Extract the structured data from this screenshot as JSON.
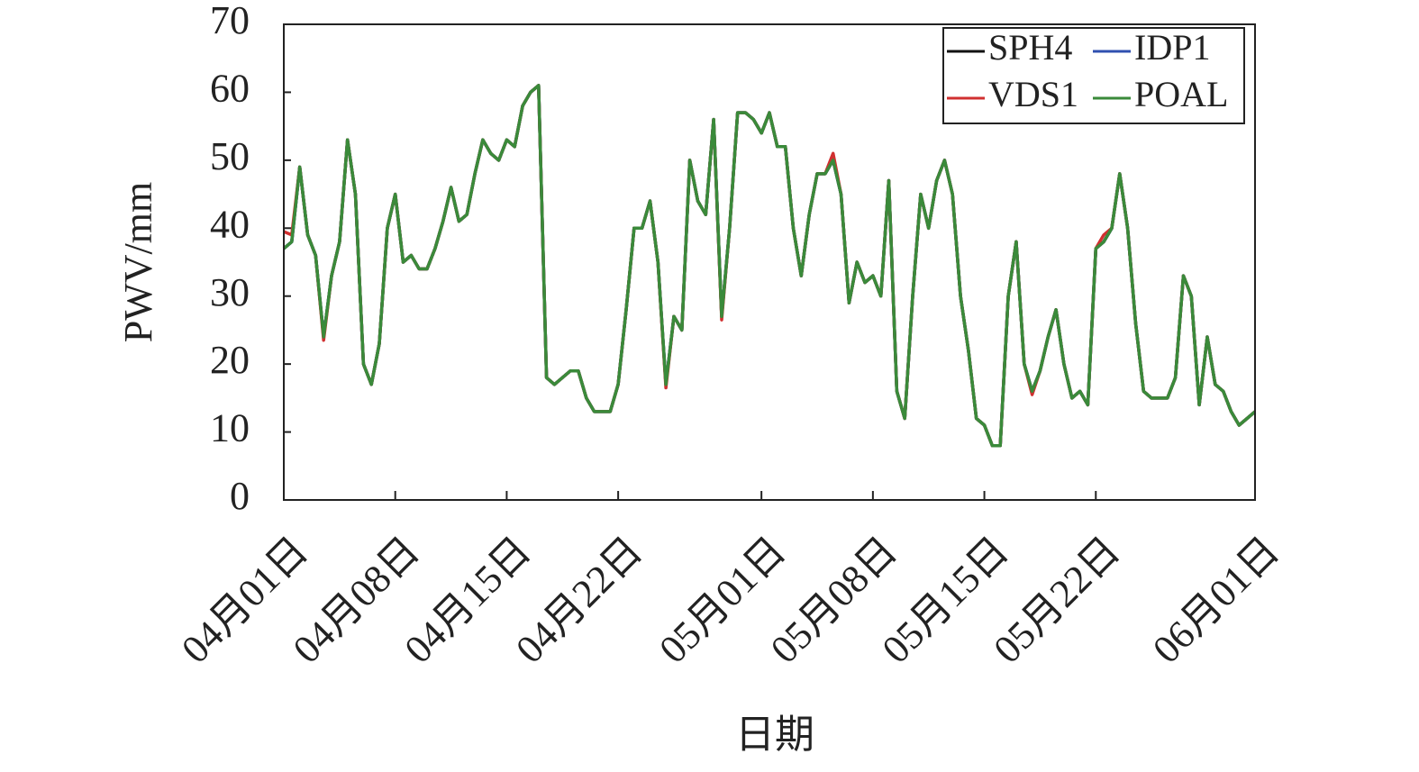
{
  "chart_data": {
    "type": "line",
    "xlabel": "日期",
    "ylabel": "PWV/mm",
    "x": [
      0,
      0.5,
      1,
      1.5,
      2,
      2.5,
      3,
      3.5,
      4,
      4.5,
      5,
      5.5,
      6,
      6.5,
      7,
      7.5,
      8,
      8.5,
      9,
      9.5,
      10,
      10.5,
      11,
      11.5,
      12,
      12.5,
      13,
      13.5,
      14,
      14.5,
      15,
      15.5,
      16,
      16.5,
      17,
      17.5,
      18,
      18.5,
      19,
      19.5,
      20,
      20.5,
      21,
      21.5,
      22,
      22.5,
      23,
      23.5,
      24,
      24.5,
      25,
      25.5,
      26,
      26.5,
      27,
      27.5,
      28,
      28.5,
      29,
      29.5,
      30,
      30.5,
      31,
      31.5,
      32,
      32.5,
      33,
      33.5,
      34,
      34.5,
      35,
      35.5,
      36,
      36.5,
      37,
      37.5,
      38,
      38.5,
      39,
      39.5,
      40,
      40.5,
      41,
      41.5,
      42,
      42.5,
      43,
      43.5,
      44,
      44.5,
      45,
      45.5,
      46,
      46.5,
      47,
      47.5,
      48,
      48.5,
      49,
      49.5,
      50,
      50.5,
      51,
      51.5,
      52,
      52.5,
      53,
      53.5,
      54,
      54.5,
      55,
      55.5,
      56,
      56.5,
      57,
      57.5,
      58,
      58.5,
      59,
      59.5,
      60,
      60.5,
      61
    ],
    "series": [
      {
        "name": "SPH4",
        "color": "#111111",
        "values": [
          37,
          38,
          49,
          39,
          36,
          24,
          33,
          38,
          53,
          45,
          20,
          17,
          23,
          40,
          45,
          35,
          36,
          34,
          34,
          37,
          41,
          46,
          41,
          42,
          48,
          53,
          51,
          50,
          53,
          52,
          58,
          60,
          61,
          18,
          17,
          18,
          19,
          19,
          15,
          13,
          13,
          13,
          17,
          28,
          40,
          40,
          44,
          35,
          17,
          27,
          25,
          50,
          44,
          42,
          56,
          27,
          40,
          57,
          57,
          56,
          54,
          57,
          52,
          52,
          40,
          33,
          42,
          48,
          48,
          50,
          45,
          29,
          35,
          32,
          33,
          30,
          47,
          16,
          12,
          30,
          45,
          40,
          47,
          50,
          45,
          30,
          22,
          12,
          11,
          8,
          8,
          30,
          38,
          20,
          16,
          19,
          24,
          28,
          20,
          15,
          16,
          14,
          37,
          38,
          40,
          48,
          40,
          26,
          16,
          15,
          15,
          15,
          18,
          33,
          30,
          14,
          24,
          17,
          16,
          13,
          11,
          12,
          13
        ]
      },
      {
        "name": "IDP1",
        "color": "#3050b0",
        "values": [
          37,
          38,
          49,
          39,
          36,
          24,
          33,
          38,
          53,
          45,
          20,
          17,
          23,
          40,
          45,
          35,
          36,
          34,
          34,
          37,
          41,
          46,
          41,
          42,
          48,
          53,
          51,
          50,
          53,
          52,
          58,
          60,
          61,
          18,
          17,
          18,
          19,
          19,
          15,
          13,
          13,
          13,
          17,
          28,
          40,
          40,
          44,
          35,
          17,
          27,
          25,
          50,
          44,
          42,
          56,
          27,
          40,
          57,
          57,
          56,
          54,
          57,
          52,
          52,
          40,
          33,
          42,
          48,
          48,
          50,
          45,
          29,
          35,
          32,
          33,
          30,
          47,
          16,
          12,
          30,
          45,
          40,
          47,
          50,
          45,
          30,
          22,
          12,
          11,
          8,
          8,
          30,
          38,
          20,
          16,
          19,
          24,
          28,
          20,
          15,
          16,
          14,
          37,
          38,
          40,
          48,
          40,
          26,
          16,
          15,
          15,
          15,
          18,
          33,
          30,
          14,
          24,
          17,
          16,
          13,
          11,
          12,
          13
        ]
      },
      {
        "name": "VDS1",
        "color": "#d03030",
        "values": [
          39.5,
          39,
          49,
          39,
          36,
          23.5,
          33,
          38,
          53,
          45,
          20,
          17,
          23,
          40,
          45,
          35,
          36,
          34,
          34,
          37,
          41,
          46,
          41,
          42,
          48,
          53,
          51,
          50,
          53,
          52,
          58,
          60,
          61,
          18,
          17,
          18,
          19,
          19,
          15,
          13,
          13,
          13,
          17,
          28,
          40,
          40,
          44,
          35,
          16.5,
          27,
          25,
          50,
          44,
          42,
          56,
          26.5,
          40,
          57,
          57,
          56,
          54,
          57,
          52,
          52,
          40,
          33,
          42,
          48,
          48,
          51,
          45,
          29,
          35,
          32,
          33,
          30,
          47,
          16,
          12,
          30,
          45,
          40,
          47,
          50,
          45,
          30,
          22,
          12,
          11,
          8,
          8,
          30,
          38,
          20,
          15.5,
          19,
          24,
          28,
          20,
          15,
          16,
          14,
          37,
          39,
          40,
          48,
          40,
          26,
          16,
          15,
          15,
          15,
          18,
          33,
          30,
          14,
          24,
          17,
          16,
          13,
          11,
          12,
          13
        ]
      },
      {
        "name": "POAL",
        "color": "#3a8a3a",
        "values": [
          37,
          38,
          49,
          39,
          36,
          24,
          33,
          38,
          53,
          45,
          20,
          17,
          23,
          40,
          45,
          35,
          36,
          34,
          34,
          37,
          41,
          46,
          41,
          42,
          48,
          53,
          51,
          50,
          53,
          52,
          58,
          60,
          61,
          18,
          17,
          18,
          19,
          19,
          15,
          13,
          13,
          13,
          17,
          28,
          40,
          40,
          44,
          35,
          17,
          27,
          25,
          50,
          44,
          42,
          56,
          27,
          40,
          57,
          57,
          56,
          54,
          57,
          52,
          52,
          40,
          33,
          42,
          48,
          48,
          50,
          45,
          29,
          35,
          32,
          33,
          30,
          47,
          16,
          12,
          30,
          45,
          40,
          47,
          50,
          45,
          30,
          22,
          12,
          11,
          8,
          8,
          30,
          38,
          20,
          16,
          19,
          24,
          28,
          20,
          15,
          16,
          14,
          37,
          38,
          40,
          48,
          40,
          26,
          16,
          15,
          15,
          15,
          18,
          33,
          30,
          14,
          24,
          17,
          16,
          13,
          11,
          12,
          13
        ]
      }
    ],
    "xlim": [
      0,
      61
    ],
    "xticks": [
      {
        "value": 0,
        "label": "04月01日"
      },
      {
        "value": 7,
        "label": "04月08日"
      },
      {
        "value": 14,
        "label": "04月15日"
      },
      {
        "value": 21,
        "label": "04月22日"
      },
      {
        "value": 30,
        "label": "05月01日"
      },
      {
        "value": 37,
        "label": "05月08日"
      },
      {
        "value": 44,
        "label": "05月15日"
      },
      {
        "value": 51,
        "label": "05月22日"
      },
      {
        "value": 61,
        "label": "06月01日"
      }
    ],
    "ylim": [
      0,
      70
    ],
    "yticks": [
      0,
      10,
      20,
      30,
      40,
      50,
      60,
      70
    ],
    "legend": "upper right"
  }
}
